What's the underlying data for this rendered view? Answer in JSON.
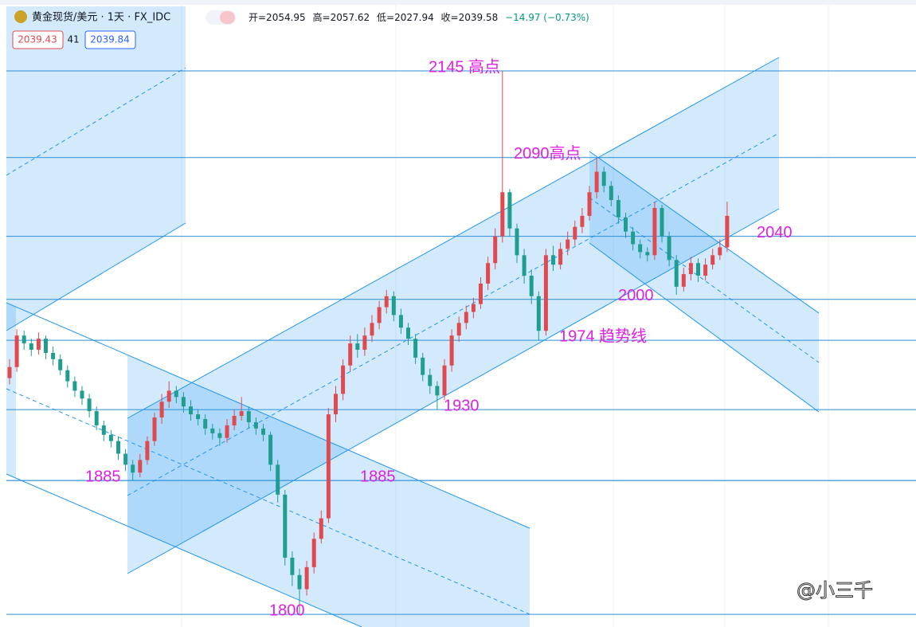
{
  "header": {
    "symbol": "黄金现货/美元 · 1天 · FX_IDC",
    "open": "开=2054.95",
    "high": "高=2057.62",
    "low": "低=2027.94",
    "close": "收=2039.58",
    "change": "−14.97 (−0.73%)",
    "bid": "2039.43",
    "spread": "41",
    "ask": "2039.84"
  },
  "watermark": "@小三千",
  "chart_data": {
    "type": "candlestick",
    "ylim": [
      1792,
      2190
    ],
    "up_color": "#e04a4f",
    "down_color": "#1f9e8f",
    "level_color": "#2b8fd8",
    "annotation_color": "#e01fe0",
    "open": [
      1950,
      1957,
      1977,
      1972,
      1968,
      1975,
      1966,
      1962,
      1955,
      1948,
      1942,
      1937,
      1929,
      1920,
      1914,
      1910,
      1902,
      1895,
      1890,
      1898,
      1910,
      1925,
      1935,
      1942,
      1938,
      1932,
      1927,
      1924,
      1918,
      1915,
      1912,
      1920,
      1926,
      1929,
      1922,
      1918,
      1914,
      1895,
      1876,
      1836,
      1825,
      1816,
      1830,
      1848,
      1861,
      1927,
      1940,
      1958,
      1972,
      1968,
      1977,
      1985,
      1995,
      2002,
      1990,
      1982,
      1975,
      1963,
      1952,
      1945,
      1939,
      1958,
      1977,
      1985,
      1992,
      1997,
      2010,
      2023,
      2040,
      2068,
      2045,
      2028,
      2015,
      2002,
      1980,
      2028,
      2022,
      2032,
      2038,
      2046,
      2053,
      2068,
      2081,
      2072,
      2063,
      2052,
      2043,
      2035,
      2030,
      2028,
      2058,
      2040,
      2025,
      2008,
      2016,
      2023,
      2015,
      2022,
      2028,
      2033
    ],
    "high": [
      1962,
      1981,
      1980,
      1975,
      1979,
      1977,
      1970,
      1965,
      1958,
      1951,
      1945,
      1940,
      1932,
      1923,
      1917,
      1913,
      1905,
      1898,
      1902,
      1913,
      1928,
      1940,
      1948,
      1945,
      1941,
      1936,
      1930,
      1927,
      1921,
      1918,
      1924,
      1930,
      1938,
      1932,
      1925,
      1921,
      1916,
      1898,
      1879,
      1840,
      1829,
      1834,
      1852,
      1866,
      1931,
      1945,
      1962,
      1977,
      1978,
      1982,
      1990,
      1999,
      2006,
      2005,
      1994,
      1985,
      1978,
      1966,
      1956,
      1948,
      1962,
      1981,
      1989,
      1996,
      2001,
      2014,
      2027,
      2045,
      2145,
      2070,
      2048,
      2032,
      2019,
      2005,
      2032,
      2034,
      2036,
      2043,
      2050,
      2058,
      2072,
      2090,
      2084,
      2075,
      2066,
      2055,
      2046,
      2038,
      2033,
      2062,
      2060,
      2043,
      2028,
      2020,
      2027,
      2026,
      2026,
      2032,
      2038,
      2062
    ],
    "low": [
      1946,
      1954,
      1968,
      1964,
      1965,
      1962,
      1958,
      1952,
      1944,
      1938,
      1933,
      1925,
      1917,
      1910,
      1906,
      1898,
      1891,
      1885,
      1887,
      1895,
      1907,
      1921,
      1931,
      1934,
      1928,
      1923,
      1920,
      1914,
      1911,
      1907,
      1909,
      1917,
      1923,
      1918,
      1914,
      1910,
      1891,
      1871,
      1831,
      1818,
      1800,
      1812,
      1826,
      1845,
      1858,
      1922,
      1936,
      1954,
      1963,
      1964,
      1973,
      1981,
      1991,
      1986,
      1978,
      1971,
      1959,
      1948,
      1940,
      1930,
      1936,
      1954,
      1973,
      1981,
      1988,
      1994,
      2006,
      2019,
      2036,
      2040,
      2023,
      2010,
      1997,
      1974,
      1977,
      2018,
      2019,
      2028,
      2034,
      2042,
      2050,
      2064,
      2068,
      2059,
      2048,
      2039,
      2031,
      2026,
      2024,
      2025,
      2036,
      2021,
      2003,
      2005,
      2012,
      2011,
      2012,
      2019,
      2025,
      2030
    ],
    "close": [
      1957,
      1977,
      1972,
      1968,
      1975,
      1966,
      1962,
      1955,
      1948,
      1942,
      1937,
      1929,
      1920,
      1914,
      1910,
      1902,
      1895,
      1890,
      1898,
      1910,
      1925,
      1935,
      1942,
      1938,
      1932,
      1927,
      1924,
      1918,
      1915,
      1912,
      1920,
      1926,
      1929,
      1922,
      1918,
      1914,
      1895,
      1876,
      1836,
      1825,
      1816,
      1830,
      1848,
      1861,
      1927,
      1940,
      1958,
      1972,
      1968,
      1977,
      1985,
      1995,
      2002,
      1990,
      1982,
      1975,
      1963,
      1952,
      1945,
      1939,
      1958,
      1977,
      1985,
      1992,
      1997,
      2010,
      2023,
      2040,
      2068,
      2045,
      2028,
      2015,
      2002,
      1980,
      2028,
      2022,
      2032,
      2038,
      2046,
      2053,
      2068,
      2081,
      2072,
      2063,
      2052,
      2043,
      2035,
      2030,
      2028,
      2058,
      2040,
      2025,
      2008,
      2016,
      2023,
      2015,
      2022,
      2028,
      2033,
      2053
    ],
    "annotations": [
      {
        "text": "2145 高点",
        "value": 2145
      },
      {
        "text": "2090高点",
        "value": 2090
      },
      {
        "text": "2040",
        "value": 2040
      },
      {
        "text": "2000",
        "value": 2000
      },
      {
        "text": "1974 趋势线",
        "value": 1974
      },
      {
        "text": "1930",
        "value": 1930
      },
      {
        "text": "1885",
        "value": 1885
      },
      {
        "text": "1885",
        "value": 1885
      },
      {
        "text": "1800",
        "value": 1800
      }
    ]
  }
}
